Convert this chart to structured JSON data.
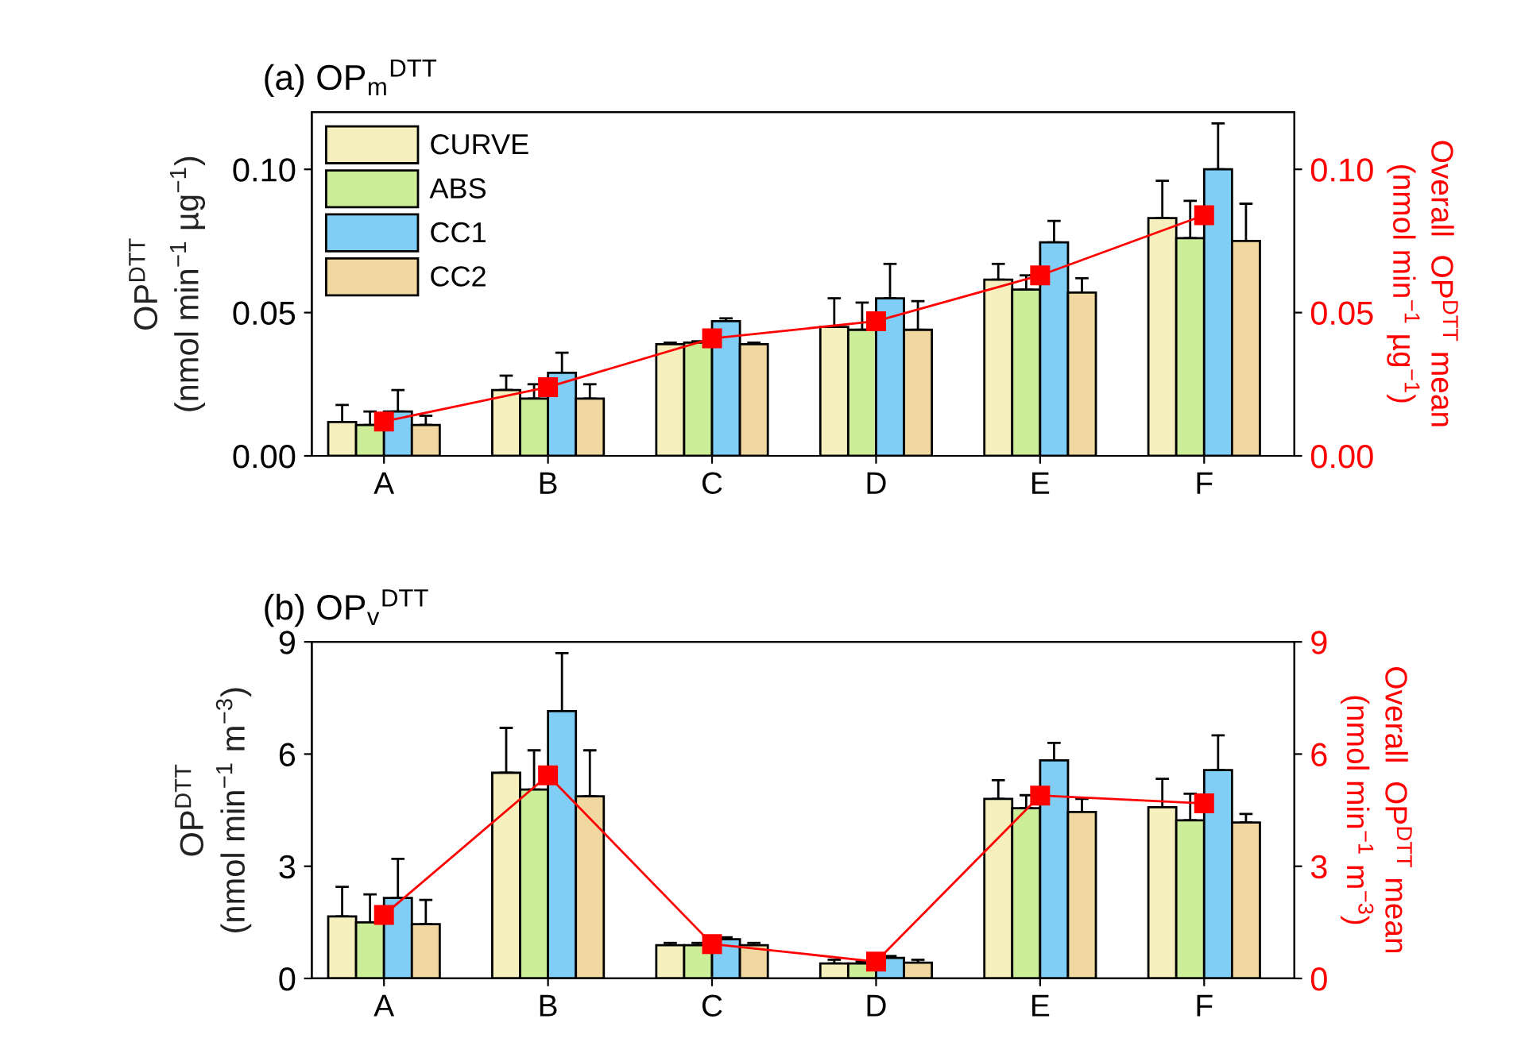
{
  "chart_data": [
    {
      "type": "bar",
      "title": "(a) OP$_{m}$$^{DTT}$",
      "ylabel": "OP$^{DTT}$\n(nmol min$^{−1}$ µg$^{−1}$)",
      "y2label": "Overall  OP$^{DTT}$ mean\n(nmol min$^{−1}$ µg$^{−1}$)",
      "categories": [
        "A",
        "B",
        "C",
        "D",
        "E",
        "F"
      ],
      "ylim": [
        0,
        0.12
      ],
      "yticks": [
        {
          "value": 0,
          "label": "0.00"
        },
        {
          "value": 0.05,
          "label": "0.05"
        },
        {
          "value": 0.1,
          "label": "0.10"
        }
      ],
      "y2lim": [
        0,
        0.12
      ],
      "y2ticks": [
        {
          "value": 0,
          "label": "0.00"
        },
        {
          "value": 0.05,
          "label": "0.05"
        },
        {
          "value": 0.1,
          "label": "0.10"
        }
      ],
      "legend": "top left",
      "grid": false,
      "series": [
        {
          "name": "CURVE",
          "color": "#f5f0be",
          "values": [
            0.0118,
            0.023,
            0.039,
            0.045,
            0.0615,
            0.083
          ],
          "errors": [
            [
              0.0118,
              0.0178
            ],
            [
              0.023,
              0.028
            ],
            [
              0.039,
              0.0395
            ],
            [
              0.045,
              0.055
            ],
            [
              0.0615,
              0.067
            ],
            [
              0.083,
              0.096
            ]
          ]
        },
        {
          "name": "ABS",
          "color": "#ccee99",
          "values": [
            0.0108,
            0.02,
            0.0395,
            0.044,
            0.058,
            0.076
          ],
          "errors": [
            [
              0.0108,
              0.0155
            ],
            [
              0.02,
              0.025
            ],
            [
              0.0395,
              0.04
            ],
            [
              0.044,
              0.0535
            ],
            [
              0.058,
              0.063
            ],
            [
              0.076,
              0.089
            ]
          ]
        },
        {
          "name": "CC1",
          "color": "#80cdf5",
          "values": [
            0.0155,
            0.029,
            0.047,
            0.055,
            0.0745,
            0.1
          ],
          "errors": [
            [
              0.0155,
              0.023
            ],
            [
              0.029,
              0.036
            ],
            [
              0.047,
              0.048
            ],
            [
              0.055,
              0.067
            ],
            [
              0.0745,
              0.082
            ],
            [
              0.1,
              0.116
            ]
          ]
        },
        {
          "name": "CC2",
          "color": "#f0d8a0",
          "values": [
            0.0108,
            0.02,
            0.039,
            0.044,
            0.057,
            0.075
          ],
          "errors": [
            [
              0.0108,
              0.014
            ],
            [
              0.02,
              0.025
            ],
            [
              0.039,
              0.0395
            ],
            [
              0.044,
              0.054
            ],
            [
              0.057,
              0.062
            ],
            [
              0.075,
              0.088
            ]
          ]
        },
        {
          "type": "line",
          "color": "#ff0000",
          "marker": "square",
          "values": [
            0.012,
            0.024,
            0.041,
            0.047,
            0.063,
            0.084
          ]
        }
      ]
    },
    {
      "type": "bar",
      "title": "(b) OP$_{v}$$^{DTT}$",
      "ylabel": "OP$^{DTT}$\n(nmol min$^{−1}$ m$^{−3}$)",
      "y2label": "Overall  OP$^{DTT}$ mean\n(nmol min$^{−1}$ m$^{−3}$)",
      "categories": [
        "A",
        "B",
        "C",
        "D",
        "E",
        "F"
      ],
      "ylim": [
        0,
        9
      ],
      "yticks": [
        0,
        3,
        6,
        9
      ],
      "y2lim": [
        0,
        9
      ],
      "y2ticks": [
        0,
        3,
        6,
        9
      ],
      "legend": false,
      "grid": false,
      "series": [
        {
          "color": "#f5f0be",
          "values": [
            1.66,
            5.5,
            0.89,
            0.4,
            4.8,
            4.58
          ],
          "errors": [
            [
              1.66,
              2.45
            ],
            [
              5.5,
              6.7
            ],
            [
              0.89,
              0.95
            ],
            [
              0.4,
              0.5
            ],
            [
              4.8,
              5.3
            ],
            [
              4.58,
              5.34
            ]
          ]
        },
        {
          "color": "#ccee99",
          "values": [
            1.5,
            5.05,
            0.89,
            0.4,
            4.55,
            4.23
          ],
          "errors": [
            [
              1.5,
              2.25
            ],
            [
              5.05,
              6.1
            ],
            [
              0.89,
              0.95
            ],
            [
              0.4,
              0.45
            ],
            [
              4.55,
              4.9
            ],
            [
              4.23,
              4.94
            ]
          ]
        },
        {
          "color": "#80cdf5",
          "values": [
            2.15,
            7.15,
            1.05,
            0.55,
            5.83,
            5.57
          ],
          "errors": [
            [
              2.15,
              3.2
            ],
            [
              7.15,
              8.7
            ],
            [
              1.05,
              1.1
            ],
            [
              0.55,
              0.6
            ],
            [
              5.83,
              6.3
            ],
            [
              5.57,
              6.5
            ]
          ]
        },
        {
          "color": "#f0d8a0",
          "values": [
            1.45,
            4.87,
            0.89,
            0.42,
            4.45,
            4.17
          ],
          "errors": [
            [
              1.45,
              2.1
            ],
            [
              4.87,
              6.1
            ],
            [
              0.89,
              0.95
            ],
            [
              0.42,
              0.5
            ],
            [
              4.45,
              4.8
            ],
            [
              4.17,
              4.4
            ]
          ]
        },
        {
          "type": "line",
          "color": "#ff0000",
          "marker": "square",
          "values": [
            1.7,
            5.43,
            0.92,
            0.45,
            4.89,
            4.68
          ]
        }
      ]
    }
  ]
}
